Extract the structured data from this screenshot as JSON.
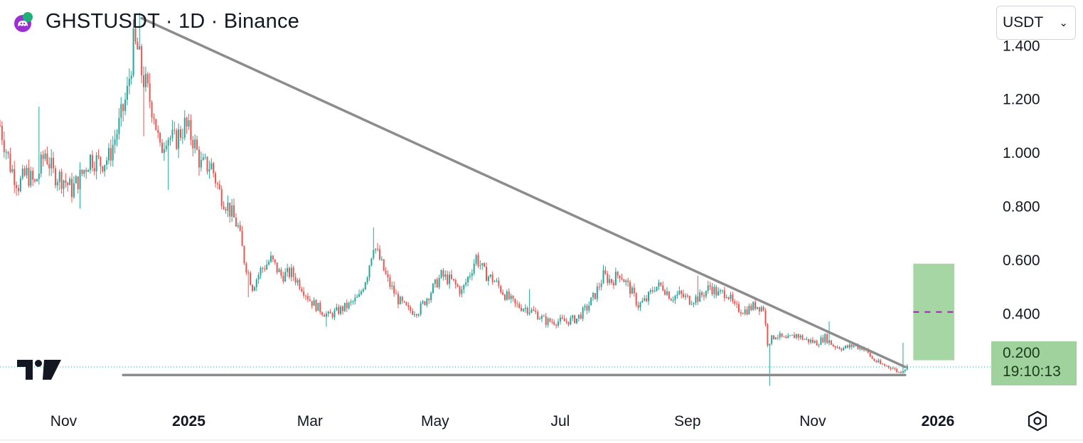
{
  "header": {
    "title": "GHSTUSDT · 1D · Binance"
  },
  "currency": {
    "selected": "USDT"
  },
  "last_price": {
    "value": "0.200",
    "countdown": "19:10:13",
    "numeric": 0.2
  },
  "colors": {
    "up": "#26a69a",
    "down": "#ef5350",
    "trendline": "#8c8c8c",
    "price_tag": "#9fd29c",
    "target_box": "#a5d6a3",
    "target_dash": "#9c27b0"
  },
  "icons": {
    "symbol": "ghost-coin-icon",
    "brand": "tradingview-logo-icon",
    "settings": "hexagon-settings-icon"
  },
  "chart_data": {
    "type": "candlestick",
    "y_axis": {
      "ticks": [
        "1.400",
        "1.200",
        "1.000",
        "0.800",
        "0.600",
        "0.400",
        "0.200"
      ],
      "range": [
        0.11,
        1.52
      ]
    },
    "x_axis": {
      "labels": [
        "Nov",
        "2025",
        "Mar",
        "May",
        "Jul",
        "Sep",
        "Nov",
        "2026"
      ],
      "range": [
        "2024-10-01",
        "2026-01-27"
      ]
    },
    "anchors": [
      [
        "2024-10-01",
        1.1
      ],
      [
        "2024-10-06",
        0.95
      ],
      [
        "2024-10-10",
        0.88
      ],
      [
        "2024-10-14",
        0.92
      ],
      [
        "2024-10-18",
        0.88
      ],
      [
        "2024-10-23",
        1.0
      ],
      [
        "2024-10-27",
        0.92
      ],
      [
        "2024-11-01",
        0.9
      ],
      [
        "2024-11-05",
        0.86
      ],
      [
        "2024-11-10",
        0.92
      ],
      [
        "2024-11-14",
        0.98
      ],
      [
        "2024-11-19",
        0.96
      ],
      [
        "2024-11-23",
        0.98
      ],
      [
        "2024-11-28",
        1.1
      ],
      [
        "2024-12-02",
        1.22
      ],
      [
        "2024-12-05",
        1.4
      ],
      [
        "2024-12-07",
        1.38
      ],
      [
        "2024-12-09",
        1.3
      ],
      [
        "2024-12-12",
        1.22
      ],
      [
        "2024-12-15",
        1.15
      ],
      [
        "2024-12-18",
        1.0
      ],
      [
        "2024-12-21",
        1.07
      ],
      [
        "2024-12-25",
        1.04
      ],
      [
        "2024-12-30",
        1.1
      ],
      [
        "2025-01-03",
        1.05
      ],
      [
        "2025-01-07",
        0.95
      ],
      [
        "2025-01-12",
        0.95
      ],
      [
        "2025-01-16",
        0.85
      ],
      [
        "2025-01-20",
        0.8
      ],
      [
        "2025-01-25",
        0.72
      ],
      [
        "2025-01-28",
        0.6
      ],
      [
        "2025-02-01",
        0.5
      ],
      [
        "2025-02-05",
        0.56
      ],
      [
        "2025-02-10",
        0.6
      ],
      [
        "2025-02-15",
        0.54
      ],
      [
        "2025-02-20",
        0.55
      ],
      [
        "2025-02-25",
        0.5
      ],
      [
        "2025-03-01",
        0.45
      ],
      [
        "2025-03-05",
        0.42
      ],
      [
        "2025-03-10",
        0.39
      ],
      [
        "2025-03-15",
        0.41
      ],
      [
        "2025-03-20",
        0.43
      ],
      [
        "2025-03-25",
        0.46
      ],
      [
        "2025-03-29",
        0.55
      ],
      [
        "2025-04-01",
        0.66
      ],
      [
        "2025-04-04",
        0.6
      ],
      [
        "2025-04-08",
        0.52
      ],
      [
        "2025-04-13",
        0.45
      ],
      [
        "2025-04-18",
        0.41
      ],
      [
        "2025-04-23",
        0.41
      ],
      [
        "2025-04-28",
        0.47
      ],
      [
        "2025-05-04",
        0.54
      ],
      [
        "2025-05-09",
        0.52
      ],
      [
        "2025-05-14",
        0.48
      ],
      [
        "2025-05-18",
        0.55
      ],
      [
        "2025-05-21",
        0.61
      ],
      [
        "2025-05-25",
        0.55
      ],
      [
        "2025-05-30",
        0.52
      ],
      [
        "2025-06-04",
        0.47
      ],
      [
        "2025-06-09",
        0.43
      ],
      [
        "2025-06-14",
        0.42
      ],
      [
        "2025-06-19",
        0.4
      ],
      [
        "2025-06-24",
        0.37
      ],
      [
        "2025-06-29",
        0.37
      ],
      [
        "2025-07-04",
        0.37
      ],
      [
        "2025-07-09",
        0.38
      ],
      [
        "2025-07-14",
        0.42
      ],
      [
        "2025-07-18",
        0.47
      ],
      [
        "2025-07-22",
        0.54
      ],
      [
        "2025-07-26",
        0.52
      ],
      [
        "2025-07-30",
        0.55
      ],
      [
        "2025-08-04",
        0.49
      ],
      [
        "2025-08-08",
        0.43
      ],
      [
        "2025-08-12",
        0.45
      ],
      [
        "2025-08-16",
        0.5
      ],
      [
        "2025-08-20",
        0.5
      ],
      [
        "2025-08-24",
        0.46
      ],
      [
        "2025-08-28",
        0.47
      ],
      [
        "2025-09-02",
        0.45
      ],
      [
        "2025-09-07",
        0.46
      ],
      [
        "2025-09-12",
        0.5
      ],
      [
        "2025-09-16",
        0.47
      ],
      [
        "2025-09-20",
        0.48
      ],
      [
        "2025-09-24",
        0.42
      ],
      [
        "2025-09-29",
        0.41
      ],
      [
        "2025-10-04",
        0.43
      ],
      [
        "2025-10-08",
        0.42
      ],
      [
        "2025-10-10",
        0.29
      ],
      [
        "2025-10-14",
        0.32
      ],
      [
        "2025-10-19",
        0.3
      ],
      [
        "2025-10-24",
        0.32
      ],
      [
        "2025-10-29",
        0.3
      ],
      [
        "2025-11-03",
        0.29
      ],
      [
        "2025-11-07",
        0.31
      ],
      [
        "2025-11-11",
        0.28
      ],
      [
        "2025-11-16",
        0.27
      ],
      [
        "2025-11-21",
        0.28
      ],
      [
        "2025-11-26",
        0.27
      ],
      [
        "2025-11-30",
        0.23
      ],
      [
        "2025-12-04",
        0.21
      ],
      [
        "2025-12-09",
        0.2
      ],
      [
        "2025-12-13",
        0.18
      ],
      [
        "2025-12-15",
        0.19
      ],
      [
        "2025-12-17",
        0.2
      ]
    ],
    "spikes": [
      {
        "date": "2024-10-20",
        "high": 1.17
      },
      {
        "date": "2024-11-09",
        "low": 0.79
      },
      {
        "date": "2024-12-06",
        "high": 1.5
      },
      {
        "date": "2024-12-08",
        "high": 1.52
      },
      {
        "date": "2024-12-10",
        "low": 1.06
      },
      {
        "date": "2024-12-22",
        "low": 0.86
      },
      {
        "date": "2025-01-30",
        "low": 0.46
      },
      {
        "date": "2025-03-09",
        "low": 0.35
      },
      {
        "date": "2025-04-01",
        "high": 0.72
      },
      {
        "date": "2025-06-16",
        "high": 0.49
      },
      {
        "date": "2025-07-22",
        "high": 0.58
      },
      {
        "date": "2025-09-06",
        "high": 0.54
      },
      {
        "date": "2025-10-11",
        "low": 0.13
      },
      {
        "date": "2025-11-09",
        "high": 0.37
      },
      {
        "date": "2025-12-15",
        "high": 0.29
      }
    ],
    "trendlines": [
      {
        "from": [
          "2024-12-09",
          1.5
        ],
        "to": [
          "2025-12-16",
          0.2
        ]
      },
      {
        "from": [
          "2024-11-30",
          0.17
        ],
        "to": [
          "2025-12-16",
          0.17
        ]
      }
    ],
    "target_zone": {
      "start": "2025-12-20",
      "end": "2026-01-09",
      "low": 0.225,
      "high": 0.585,
      "mid": 0.405
    },
    "last_price_line": 0.2,
    "grid": false
  }
}
